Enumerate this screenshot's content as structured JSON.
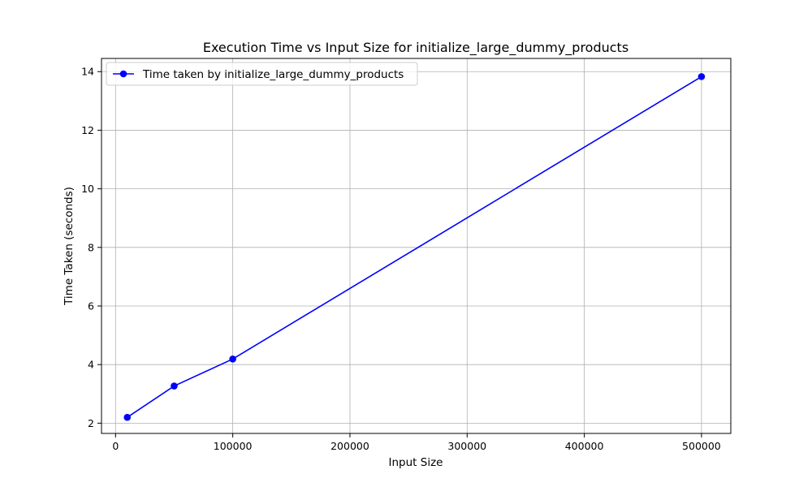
{
  "chart_data": {
    "type": "line",
    "title": "Execution Time vs Input Size for initialize_large_dummy_products",
    "xlabel": "Input Size",
    "ylabel": "Time Taken (seconds)",
    "xlim": [
      -12000,
      525000
    ],
    "ylim": [
      1.65,
      14.45
    ],
    "xticks": [
      0,
      100000,
      200000,
      300000,
      400000,
      500000
    ],
    "yticks": [
      2,
      4,
      6,
      8,
      10,
      12,
      14
    ],
    "grid": true,
    "legend_position": "upper-left",
    "series": [
      {
        "name": "Time taken by initialize_large_dummy_products",
        "color": "#0000ff",
        "marker": "circle",
        "x": [
          10000,
          50000,
          100000,
          500000
        ],
        "y": [
          2.2,
          3.27,
          4.19,
          13.83
        ]
      }
    ]
  }
}
